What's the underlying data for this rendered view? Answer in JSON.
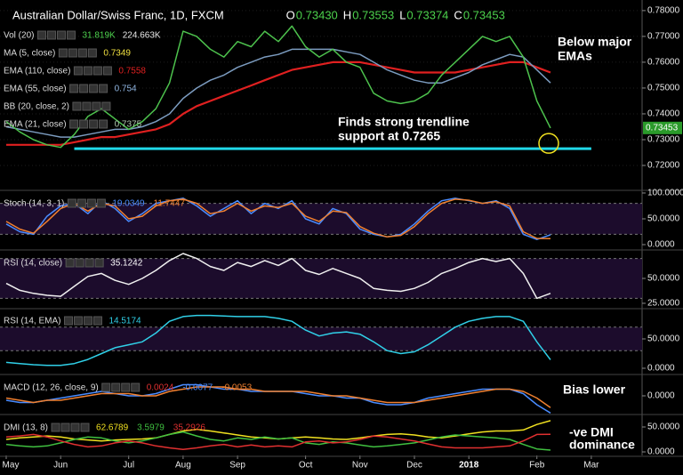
{
  "chart_data": [
    {
      "type": "line",
      "title": "Australian Dollar/Swiss Franc, 1D, FXCM",
      "ohlc": [
        {
          "label": "O",
          "value": "0.73430"
        },
        {
          "label": "H",
          "value": "0.73553"
        },
        {
          "label": "L",
          "value": "0.73374"
        },
        {
          "label": "C",
          "value": "0.73453"
        }
      ],
      "indicators": [
        {
          "name": "Vol (20)",
          "readouts": [
            {
              "text": "31.819K",
              "color": "#4dd24d"
            },
            {
              "text": "224.663K",
              "color": "#e8e8e8"
            }
          ]
        },
        {
          "name": "MA (5, close)",
          "readouts": [
            {
              "text": "0.7349",
              "color": "#f0e040"
            }
          ]
        },
        {
          "name": "EMA (110, close)",
          "readouts": [
            {
              "text": "0.7558",
              "color": "#e02020"
            }
          ]
        },
        {
          "name": "EMA (55, close)",
          "readouts": [
            {
              "text": "0.754",
              "color": "#8fb4e0"
            }
          ]
        },
        {
          "name": "BB (20, close, 2)",
          "readouts": []
        },
        {
          "name": "EMA (21, close)",
          "readouts": [
            {
              "text": "0.7375",
              "color": "#b0c8b0"
            }
          ]
        }
      ],
      "categories": [
        "May",
        null,
        null,
        null,
        "Jun",
        null,
        null,
        null,
        null,
        "Jul",
        null,
        null,
        null,
        "Aug",
        null,
        null,
        null,
        "Sep",
        null,
        null,
        null,
        null,
        "Oct",
        null,
        null,
        null,
        "Nov",
        null,
        null,
        null,
        "Dec",
        null,
        null,
        null,
        "2018",
        null,
        null,
        null,
        null,
        "Feb",
        null,
        null,
        null,
        "Mar"
      ],
      "series": [
        {
          "name": "EMA (110, close)",
          "color": "#e02020",
          "values": [
            0.728,
            0.728,
            0.728,
            0.728,
            0.728,
            0.729,
            0.73,
            0.731,
            0.731,
            0.732,
            0.733,
            0.734,
            0.736,
            0.74,
            0.743,
            0.745,
            0.747,
            0.749,
            0.751,
            0.753,
            0.755,
            0.757,
            0.758,
            0.759,
            0.76,
            0.76,
            0.76,
            0.759,
            0.758,
            0.757,
            0.756,
            0.756,
            0.756,
            0.756,
            0.757,
            0.758,
            0.759,
            0.76,
            0.76,
            0.758,
            0.756,
            null,
            null,
            null
          ]
        },
        {
          "name": "EMA (55, close)",
          "color": "#7c9cc0",
          "values": [
            0.735,
            0.734,
            0.733,
            0.732,
            0.731,
            0.731,
            0.732,
            0.733,
            0.734,
            0.734,
            0.735,
            0.737,
            0.74,
            0.746,
            0.75,
            0.753,
            0.755,
            0.758,
            0.76,
            0.762,
            0.763,
            0.765,
            0.765,
            0.765,
            0.765,
            0.764,
            0.763,
            0.76,
            0.757,
            0.755,
            0.753,
            0.752,
            0.752,
            0.754,
            0.756,
            0.759,
            0.761,
            0.763,
            0.762,
            0.757,
            0.752,
            null,
            null,
            null
          ]
        },
        {
          "name": "Close",
          "color": "#4dc24d",
          "values": [
            0.737,
            0.733,
            0.73,
            0.728,
            0.727,
            0.732,
            0.739,
            0.742,
            0.738,
            0.734,
            0.737,
            0.742,
            0.752,
            0.772,
            0.77,
            0.765,
            0.762,
            0.768,
            0.766,
            0.772,
            0.768,
            0.774,
            0.766,
            0.762,
            0.765,
            0.76,
            0.758,
            0.748,
            0.745,
            0.744,
            0.745,
            0.748,
            0.755,
            0.76,
            0.765,
            0.77,
            0.768,
            0.77,
            0.762,
            0.745,
            0.7345,
            null,
            null,
            null
          ]
        }
      ],
      "trendline": 0.7265,
      "last_price": {
        "value": 0.73453,
        "label": "0.73453"
      },
      "annotations": [
        [
          "Below major",
          "EMAs"
        ],
        [
          "Finds strong trendline",
          "support at 0.7265"
        ]
      ],
      "ylim": [
        0.7107,
        0.7841
      ],
      "yticks": [
        {
          "value": 0.72,
          "label": "0.72000"
        },
        {
          "value": 0.73,
          "label": "0.73000"
        },
        {
          "value": 0.74,
          "label": "0.74000"
        },
        {
          "value": 0.75,
          "label": "0.75000"
        },
        {
          "value": 0.76,
          "label": "0.76000"
        },
        {
          "value": 0.77,
          "label": "0.77000"
        },
        {
          "value": 0.78,
          "label": "0.78000"
        }
      ],
      "grid": true
    },
    {
      "type": "line",
      "title": "Stoch (14, 3, 1)",
      "readouts": [
        {
          "text": "19.0349",
          "color": "#4a8cff"
        },
        {
          "text": "11.7447",
          "color": "#f08030"
        }
      ],
      "series": [
        {
          "name": "%K",
          "color": "#4a8cff",
          "values": [
            40,
            25,
            20,
            55,
            75,
            80,
            60,
            85,
            70,
            45,
            60,
            80,
            85,
            90,
            75,
            55,
            70,
            85,
            60,
            80,
            70,
            85,
            50,
            40,
            70,
            60,
            30,
            20,
            15,
            20,
            40,
            65,
            85,
            90,
            85,
            80,
            85,
            70,
            20,
            10,
            19,
            null,
            null,
            null
          ]
        },
        {
          "name": "%D",
          "color": "#f08030",
          "values": [
            45,
            30,
            22,
            45,
            70,
            80,
            65,
            80,
            75,
            50,
            55,
            75,
            85,
            88,
            80,
            60,
            65,
            80,
            65,
            75,
            72,
            80,
            55,
            45,
            65,
            62,
            35,
            22,
            15,
            18,
            35,
            60,
            80,
            88,
            86,
            80,
            83,
            75,
            25,
            12,
            11.7,
            null,
            null,
            null
          ]
        }
      ],
      "levels": [
        80,
        20
      ],
      "ylim": [
        -8.6,
        103.4
      ],
      "yticks": [
        {
          "value": 100,
          "label": "100.0000"
        },
        {
          "value": 50,
          "label": "50.0000"
        },
        {
          "value": 0,
          "label": "0.0000"
        }
      ]
    },
    {
      "type": "line",
      "title": "RSI (14, close)",
      "readouts": [
        {
          "text": "35.1242",
          "color": "#ffffff"
        }
      ],
      "series": [
        {
          "name": "RSI",
          "color": "#f0f0f0",
          "values": [
            45,
            38,
            35,
            33,
            32,
            42,
            52,
            55,
            48,
            44,
            50,
            58,
            68,
            75,
            70,
            62,
            58,
            66,
            62,
            68,
            63,
            70,
            58,
            54,
            60,
            55,
            50,
            40,
            38,
            37,
            40,
            46,
            55,
            60,
            66,
            70,
            67,
            70,
            55,
            30,
            35,
            null,
            null,
            null
          ]
        }
      ],
      "levels": [
        70,
        30
      ],
      "ylim": [
        20.5,
        77.7
      ],
      "yticks": [
        {
          "value": 50,
          "label": "50.0000"
        },
        {
          "value": 25,
          "label": "25.0000"
        }
      ]
    },
    {
      "type": "line",
      "title": "RSI (14, EMA)",
      "readouts": [
        {
          "text": "14.5174",
          "color": "#30d0e8"
        }
      ],
      "series": [
        {
          "name": "RSI EMA",
          "color": "#30d0e8",
          "values": [
            10,
            8,
            6,
            5,
            5,
            8,
            15,
            25,
            35,
            40,
            45,
            60,
            80,
            88,
            90,
            90,
            89,
            88,
            88,
            88,
            85,
            80,
            65,
            55,
            60,
            62,
            58,
            45,
            30,
            25,
            28,
            40,
            55,
            70,
            80,
            85,
            88,
            88,
            80,
            45,
            14.5,
            null,
            null,
            null
          ]
        }
      ],
      "levels": [
        70,
        30
      ],
      "ylim": [
        -9.1,
        101.5
      ],
      "yticks": [
        {
          "value": 50,
          "label": "50.0000"
        },
        {
          "value": 0,
          "label": "0.0000"
        }
      ]
    },
    {
      "type": "line",
      "title": "MACD (12, 26, close, 9)",
      "readouts": [
        {
          "text": "0.0024",
          "color": "#e03030"
        },
        {
          "text": "-0.0077",
          "color": "#4a8cff"
        },
        {
          "text": "-0.0053",
          "color": "#f08030"
        }
      ],
      "series": [
        {
          "name": "MACD",
          "color": "#4a8cff",
          "values": [
            -0.002,
            -0.003,
            -0.003,
            -0.002,
            -0.001,
            0.0,
            0.001,
            0.002,
            0.001,
            0.0,
            0.0,
            0.001,
            0.003,
            0.005,
            0.005,
            0.004,
            0.003,
            0.003,
            0.002,
            0.002,
            0.002,
            0.002,
            0.001,
            0.0,
            0.0,
            -0.001,
            -0.001,
            -0.003,
            -0.004,
            -0.004,
            -0.003,
            -0.001,
            0.0,
            0.001,
            0.002,
            0.003,
            0.003,
            0.003,
            0.001,
            -0.004,
            -0.0077,
            null,
            null,
            null
          ]
        },
        {
          "name": "Signal",
          "color": "#f08030",
          "values": [
            -0.001,
            -0.002,
            -0.003,
            -0.002,
            -0.002,
            -0.001,
            0.0,
            0.001,
            0.001,
            0.001,
            0.0,
            0.0,
            0.002,
            0.003,
            0.004,
            0.004,
            0.004,
            0.003,
            0.003,
            0.002,
            0.002,
            0.002,
            0.002,
            0.001,
            0.0,
            0.0,
            -0.001,
            -0.002,
            -0.003,
            -0.003,
            -0.003,
            -0.002,
            -0.001,
            0.0,
            0.001,
            0.002,
            0.003,
            0.003,
            0.002,
            -0.001,
            -0.0053,
            null,
            null,
            null
          ]
        }
      ],
      "annotations": [
        [
          "Bias lower"
        ]
      ],
      "ylim": [
        -0.008,
        0.0092
      ],
      "yticks": [
        {
          "value": 0,
          "label": "0.0000"
        }
      ]
    },
    {
      "type": "line",
      "title": "DMI (13, 8)",
      "readouts": [
        {
          "text": "62.6789",
          "color": "#f0e020"
        },
        {
          "text": "3.5979",
          "color": "#40c040"
        },
        {
          "text": "35.2926",
          "color": "#e03030"
        }
      ],
      "series": [
        {
          "name": "ADX",
          "color": "#f0e020",
          "values": [
            25,
            28,
            30,
            32,
            30,
            26,
            24,
            22,
            24,
            25,
            26,
            28,
            35,
            42,
            45,
            42,
            38,
            34,
            30,
            28,
            26,
            28,
            30,
            28,
            26,
            25,
            28,
            32,
            35,
            36,
            34,
            30,
            28,
            32,
            36,
            40,
            42,
            42,
            44,
            55,
            62.7,
            null,
            null,
            null
          ]
        },
        {
          "name": "+DI",
          "color": "#40c040",
          "values": [
            15,
            12,
            10,
            12,
            18,
            25,
            30,
            28,
            22,
            18,
            22,
            28,
            35,
            40,
            32,
            25,
            22,
            28,
            25,
            30,
            26,
            28,
            18,
            15,
            20,
            18,
            14,
            10,
            12,
            15,
            18,
            24,
            30,
            34,
            32,
            30,
            28,
            25,
            15,
            6,
            3.6,
            null,
            null,
            null
          ]
        },
        {
          "name": "-DI",
          "color": "#e03030",
          "values": [
            30,
            32,
            35,
            30,
            22,
            15,
            10,
            12,
            18,
            22,
            18,
            12,
            8,
            5,
            8,
            12,
            15,
            10,
            14,
            10,
            12,
            10,
            20,
            22,
            18,
            20,
            25,
            32,
            30,
            26,
            22,
            16,
            10,
            8,
            8,
            8,
            10,
            12,
            22,
            35,
            35.3,
            null,
            null,
            null
          ]
        }
      ],
      "annotations": [
        [
          "-ve DMI",
          "dominance"
        ]
      ],
      "ylim": [
        -7.1,
        73.2
      ],
      "yticks": [
        {
          "value": 50,
          "label": "50.0000"
        },
        {
          "value": 0,
          "label": "0.0000"
        }
      ]
    }
  ]
}
